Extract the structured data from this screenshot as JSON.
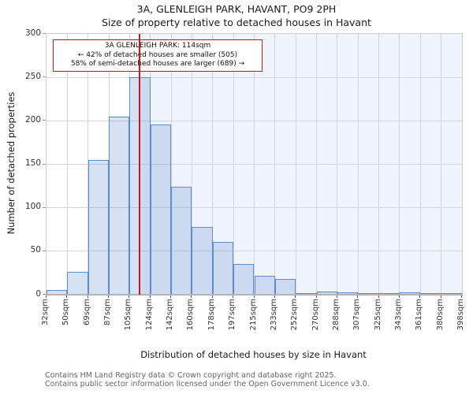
{
  "page": {
    "title_line1": "3A, GLENLEIGH PARK, HAVANT, PO9 2PH",
    "title_line2": "Size of property relative to detached houses in Havant"
  },
  "annotation": {
    "line1": "3A GLENLEIGH PARK: 114sqm",
    "line2": "← 42% of detached houses are smaller (505)",
    "line3": "58% of semi-detached houses are larger (689) →"
  },
  "footer": {
    "line1": "Contains HM Land Registry data © Crown copyright and database right 2025.",
    "line2": "Contains public sector information licensed under the Open Government Licence v3.0."
  },
  "chart_data": {
    "type": "bar",
    "title": "3A, GLENLEIGH PARK, HAVANT, PO9 2PH — Size of property relative to detached houses in Havant",
    "xlabel": "Distribution of detached houses by size in Havant",
    "ylabel": "Number of detached properties",
    "bin_edges_sqm": [
      32,
      50,
      69,
      87,
      105,
      124,
      142,
      160,
      178,
      197,
      215,
      233,
      252,
      270,
      288,
      307,
      325,
      343,
      361,
      380,
      398
    ],
    "x_tick_labels": [
      "32sqm",
      "50sqm",
      "69sqm",
      "87sqm",
      "105sqm",
      "124sqm",
      "142sqm",
      "160sqm",
      "178sqm",
      "197sqm",
      "215sqm",
      "233sqm",
      "252sqm",
      "270sqm",
      "288sqm",
      "307sqm",
      "325sqm",
      "343sqm",
      "361sqm",
      "380sqm",
      "398sqm"
    ],
    "values": [
      5,
      26,
      155,
      205,
      250,
      196,
      124,
      78,
      61,
      35,
      22,
      18,
      2,
      4,
      3,
      2,
      2,
      3,
      2,
      1
    ],
    "yticks": [
      0,
      50,
      100,
      150,
      200,
      250,
      300
    ],
    "ylim": [
      0,
      300
    ],
    "xlim_sqm": [
      32,
      398
    ],
    "marker": {
      "value_sqm": 114,
      "smaller_pct": 42,
      "smaller_count": 505,
      "larger_pct": 58,
      "larger_count": 689
    },
    "grid": true,
    "legend": "none",
    "colors": {
      "bar_fill": "rgba(91,139,208,0.25)",
      "bar_border": "#5b8bd0",
      "marker_line": "#c01a1a",
      "annotation_border": "#c01a1a",
      "shaded_region": "#f0f4fc",
      "gridline": "#d2d5db"
    }
  }
}
